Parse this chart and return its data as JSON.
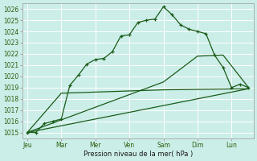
{
  "xlabel": "Pression niveau de la mer( hPa )",
  "bg_color": "#cceee8",
  "grid_color": "#ffffff",
  "line_color": "#1a5c1a",
  "ylim": [
    1014.5,
    1026.5
  ],
  "yticks": [
    1015,
    1016,
    1017,
    1018,
    1019,
    1020,
    1021,
    1022,
    1023,
    1024,
    1025,
    1026
  ],
  "days": [
    "Jeu",
    "Mar",
    "Mer",
    "Ven",
    "Sam",
    "Dim",
    "Lun"
  ],
  "day_positions": [
    0,
    2,
    4,
    6,
    8,
    10,
    12
  ],
  "xlim": [
    -0.3,
    13.3
  ],
  "series1_x": [
    0,
    0.5,
    1.0,
    1.5,
    2.0,
    2.5,
    3.0,
    3.5,
    4.0,
    4.5,
    5.0,
    5.5,
    6.0,
    6.5,
    7.0,
    7.5,
    8.0,
    8.5,
    9.0,
    9.5,
    10.0,
    10.5,
    11.0,
    11.5,
    12.0,
    12.5,
    13.0
  ],
  "series1_y": [
    1015.0,
    1015.0,
    1015.8,
    1016.0,
    1016.2,
    1019.2,
    1020.1,
    1021.1,
    1021.5,
    1021.6,
    1022.2,
    1023.6,
    1023.7,
    1024.8,
    1025.0,
    1025.1,
    1026.2,
    1025.5,
    1024.6,
    1024.2,
    1024.0,
    1023.8,
    1021.9,
    1020.8,
    1019.0,
    1019.3,
    1019.0
  ],
  "series2_x": [
    0,
    13.0
  ],
  "series2_y": [
    1015.0,
    1018.9
  ],
  "series3_x": [
    0,
    8.0,
    10.0,
    11.5,
    13.0
  ],
  "series3_y": [
    1015.0,
    1019.5,
    1021.8,
    1021.9,
    1019.0
  ],
  "series4_x": [
    0,
    2.0,
    8.0,
    13.0
  ],
  "series4_y": [
    1015.0,
    1018.5,
    1018.8,
    1018.9
  ]
}
